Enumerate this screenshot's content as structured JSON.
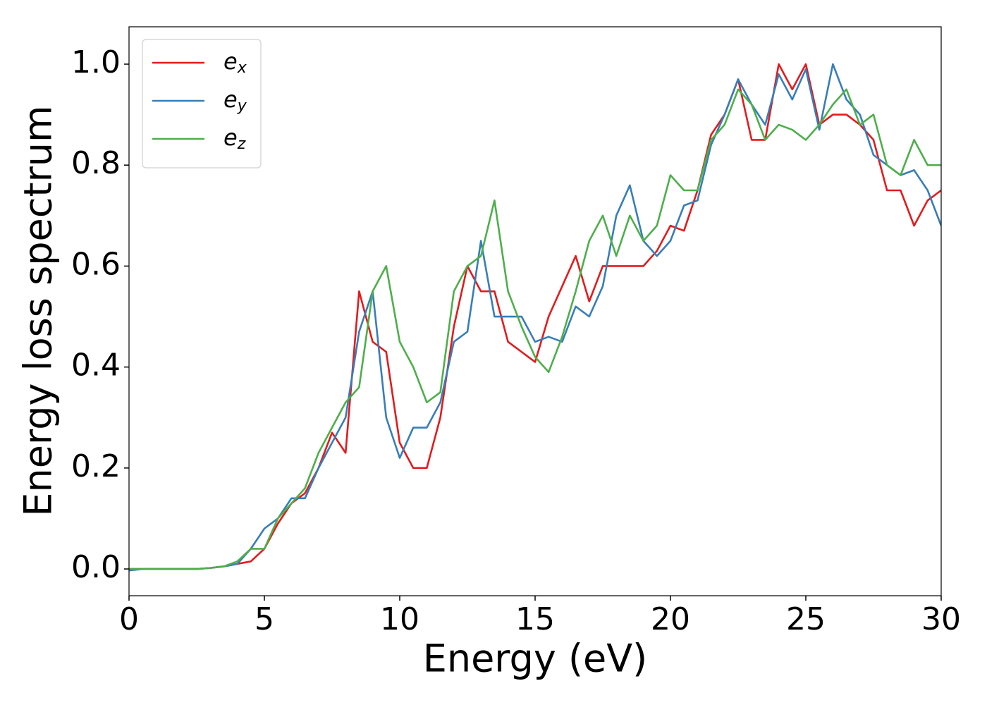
{
  "chart_data": {
    "type": "line",
    "xlabel": "Energy (eV)",
    "ylabel": "Energy loss spectrum",
    "x": [
      0,
      0.5,
      1,
      1.5,
      2,
      2.5,
      3,
      3.5,
      4,
      4.5,
      5,
      5.5,
      6,
      6.5,
      7,
      7.5,
      8,
      8.5,
      9,
      9.5,
      10,
      10.5,
      11,
      11.5,
      12,
      12.5,
      13,
      13.5,
      14,
      14.5,
      15,
      15.5,
      16,
      16.5,
      17,
      17.5,
      18,
      18.5,
      19,
      19.5,
      20,
      20.5,
      21,
      21.5,
      22,
      22.5,
      23,
      23.5,
      24,
      24.5,
      25,
      25.5,
      26,
      26.5,
      27,
      27.5,
      28,
      28.5,
      29,
      29.5,
      30
    ],
    "series": [
      {
        "name": "ex",
        "color": "#e41a1c",
        "values": [
          0,
          0,
          0,
          0,
          0,
          0,
          0.002,
          0.005,
          0.01,
          0.015,
          0.04,
          0.09,
          0.13,
          0.15,
          0.2,
          0.27,
          0.23,
          0.55,
          0.45,
          0.43,
          0.25,
          0.2,
          0.2,
          0.3,
          0.48,
          0.6,
          0.55,
          0.55,
          0.45,
          0.43,
          0.41,
          0.5,
          0.56,
          0.62,
          0.53,
          0.6,
          0.6,
          0.6,
          0.6,
          0.63,
          0.68,
          0.67,
          0.75,
          0.86,
          0.9,
          0.97,
          0.85,
          0.85,
          1.0,
          0.95,
          1.0,
          0.88,
          0.9,
          0.9,
          0.88,
          0.85,
          0.75,
          0.75,
          0.68,
          0.73,
          0.75
        ]
      },
      {
        "name": "ey",
        "color": "#377eb8",
        "values": [
          -0.003,
          0,
          0,
          0,
          0,
          0,
          0.002,
          0.005,
          0.01,
          0.04,
          0.08,
          0.1,
          0.14,
          0.14,
          0.2,
          0.25,
          0.3,
          0.47,
          0.55,
          0.3,
          0.22,
          0.28,
          0.28,
          0.33,
          0.45,
          0.47,
          0.65,
          0.5,
          0.5,
          0.5,
          0.45,
          0.46,
          0.45,
          0.52,
          0.5,
          0.56,
          0.7,
          0.76,
          0.65,
          0.62,
          0.65,
          0.72,
          0.73,
          0.84,
          0.9,
          0.97,
          0.92,
          0.88,
          0.98,
          0.93,
          0.99,
          0.87,
          1.0,
          0.93,
          0.9,
          0.82,
          0.8,
          0.78,
          0.79,
          0.75,
          0.68
        ]
      },
      {
        "name": "ez",
        "color": "#4daf4a",
        "values": [
          0,
          0,
          0,
          0,
          0,
          0,
          0.002,
          0.005,
          0.015,
          0.04,
          0.04,
          0.1,
          0.13,
          0.16,
          0.23,
          0.28,
          0.33,
          0.36,
          0.55,
          0.6,
          0.45,
          0.4,
          0.33,
          0.35,
          0.55,
          0.6,
          0.62,
          0.73,
          0.55,
          0.48,
          0.42,
          0.39,
          0.46,
          0.55,
          0.65,
          0.7,
          0.62,
          0.7,
          0.65,
          0.68,
          0.78,
          0.75,
          0.75,
          0.85,
          0.88,
          0.95,
          0.92,
          0.85,
          0.88,
          0.87,
          0.85,
          0.88,
          0.92,
          0.95,
          0.88,
          0.9,
          0.8,
          0.78,
          0.85,
          0.8,
          0.8
        ]
      }
    ],
    "xlim": [
      0,
      30
    ],
    "xticks": [
      0,
      5,
      10,
      15,
      20,
      25,
      30
    ],
    "ylim": [
      -0.053,
      1.074
    ],
    "yticks": [
      {
        "value": 0,
        "label": "0.0"
      },
      {
        "value": 0.2,
        "label": "0.2"
      },
      {
        "value": 0.4,
        "label": "0.4"
      },
      {
        "value": 0.6,
        "label": "0.6"
      },
      {
        "value": 0.8,
        "label": "0.8"
      },
      {
        "value": 1.0,
        "label": "1.0"
      }
    ],
    "legend": "upper left",
    "grid": false
  }
}
